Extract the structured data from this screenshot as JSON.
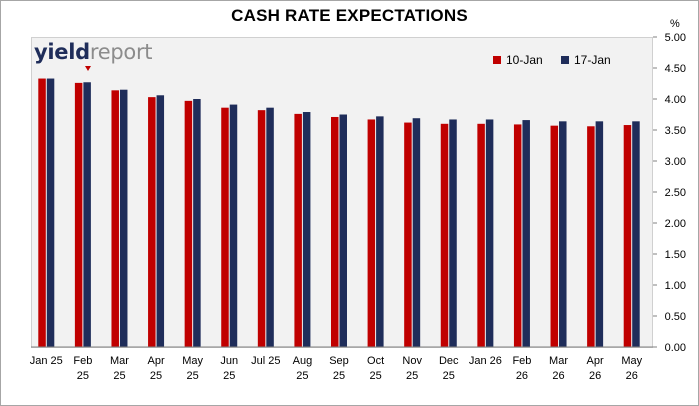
{
  "colors": {
    "series1": "#c00000",
    "series2": "#1f2d5a",
    "plot_bg": "#f2f2f2"
  },
  "logo": {
    "part1": "yield",
    "part2": "report"
  },
  "chart_data": {
    "type": "bar",
    "title": "CASH RATE EXPECTATIONS",
    "y_unit": "%",
    "ylim": [
      0,
      5
    ],
    "y_ticks": [
      "0.00",
      "0.50",
      "1.00",
      "1.50",
      "2.00",
      "2.50",
      "3.00",
      "3.50",
      "4.00",
      "4.50",
      "5.00"
    ],
    "y_axis_side": "right",
    "legend_position": "top-right",
    "grid": false,
    "categories": [
      [
        "Jan 25"
      ],
      [
        "Feb",
        "25"
      ],
      [
        "Mar",
        "25"
      ],
      [
        "Apr",
        "25"
      ],
      [
        "May",
        "25"
      ],
      [
        "Jun",
        "25"
      ],
      [
        "Jul 25"
      ],
      [
        "Aug",
        "25"
      ],
      [
        "Sep",
        "25"
      ],
      [
        "Oct",
        "25"
      ],
      [
        "Nov",
        "25"
      ],
      [
        "Dec",
        "25"
      ],
      [
        "Jan 26"
      ],
      [
        "Feb",
        "26"
      ],
      [
        "Mar",
        "26"
      ],
      [
        "Apr",
        "26"
      ],
      [
        "May",
        "26"
      ]
    ],
    "series": [
      {
        "name": "10-Jan",
        "values": [
          4.33,
          4.26,
          4.14,
          4.03,
          3.97,
          3.86,
          3.82,
          3.76,
          3.71,
          3.67,
          3.62,
          3.6,
          3.6,
          3.59,
          3.57,
          3.56,
          3.58
        ]
      },
      {
        "name": "17-Jan",
        "values": [
          4.33,
          4.27,
          4.15,
          4.06,
          4.0,
          3.91,
          3.86,
          3.79,
          3.75,
          3.72,
          3.69,
          3.67,
          3.67,
          3.66,
          3.64,
          3.64,
          3.64
        ]
      }
    ]
  }
}
